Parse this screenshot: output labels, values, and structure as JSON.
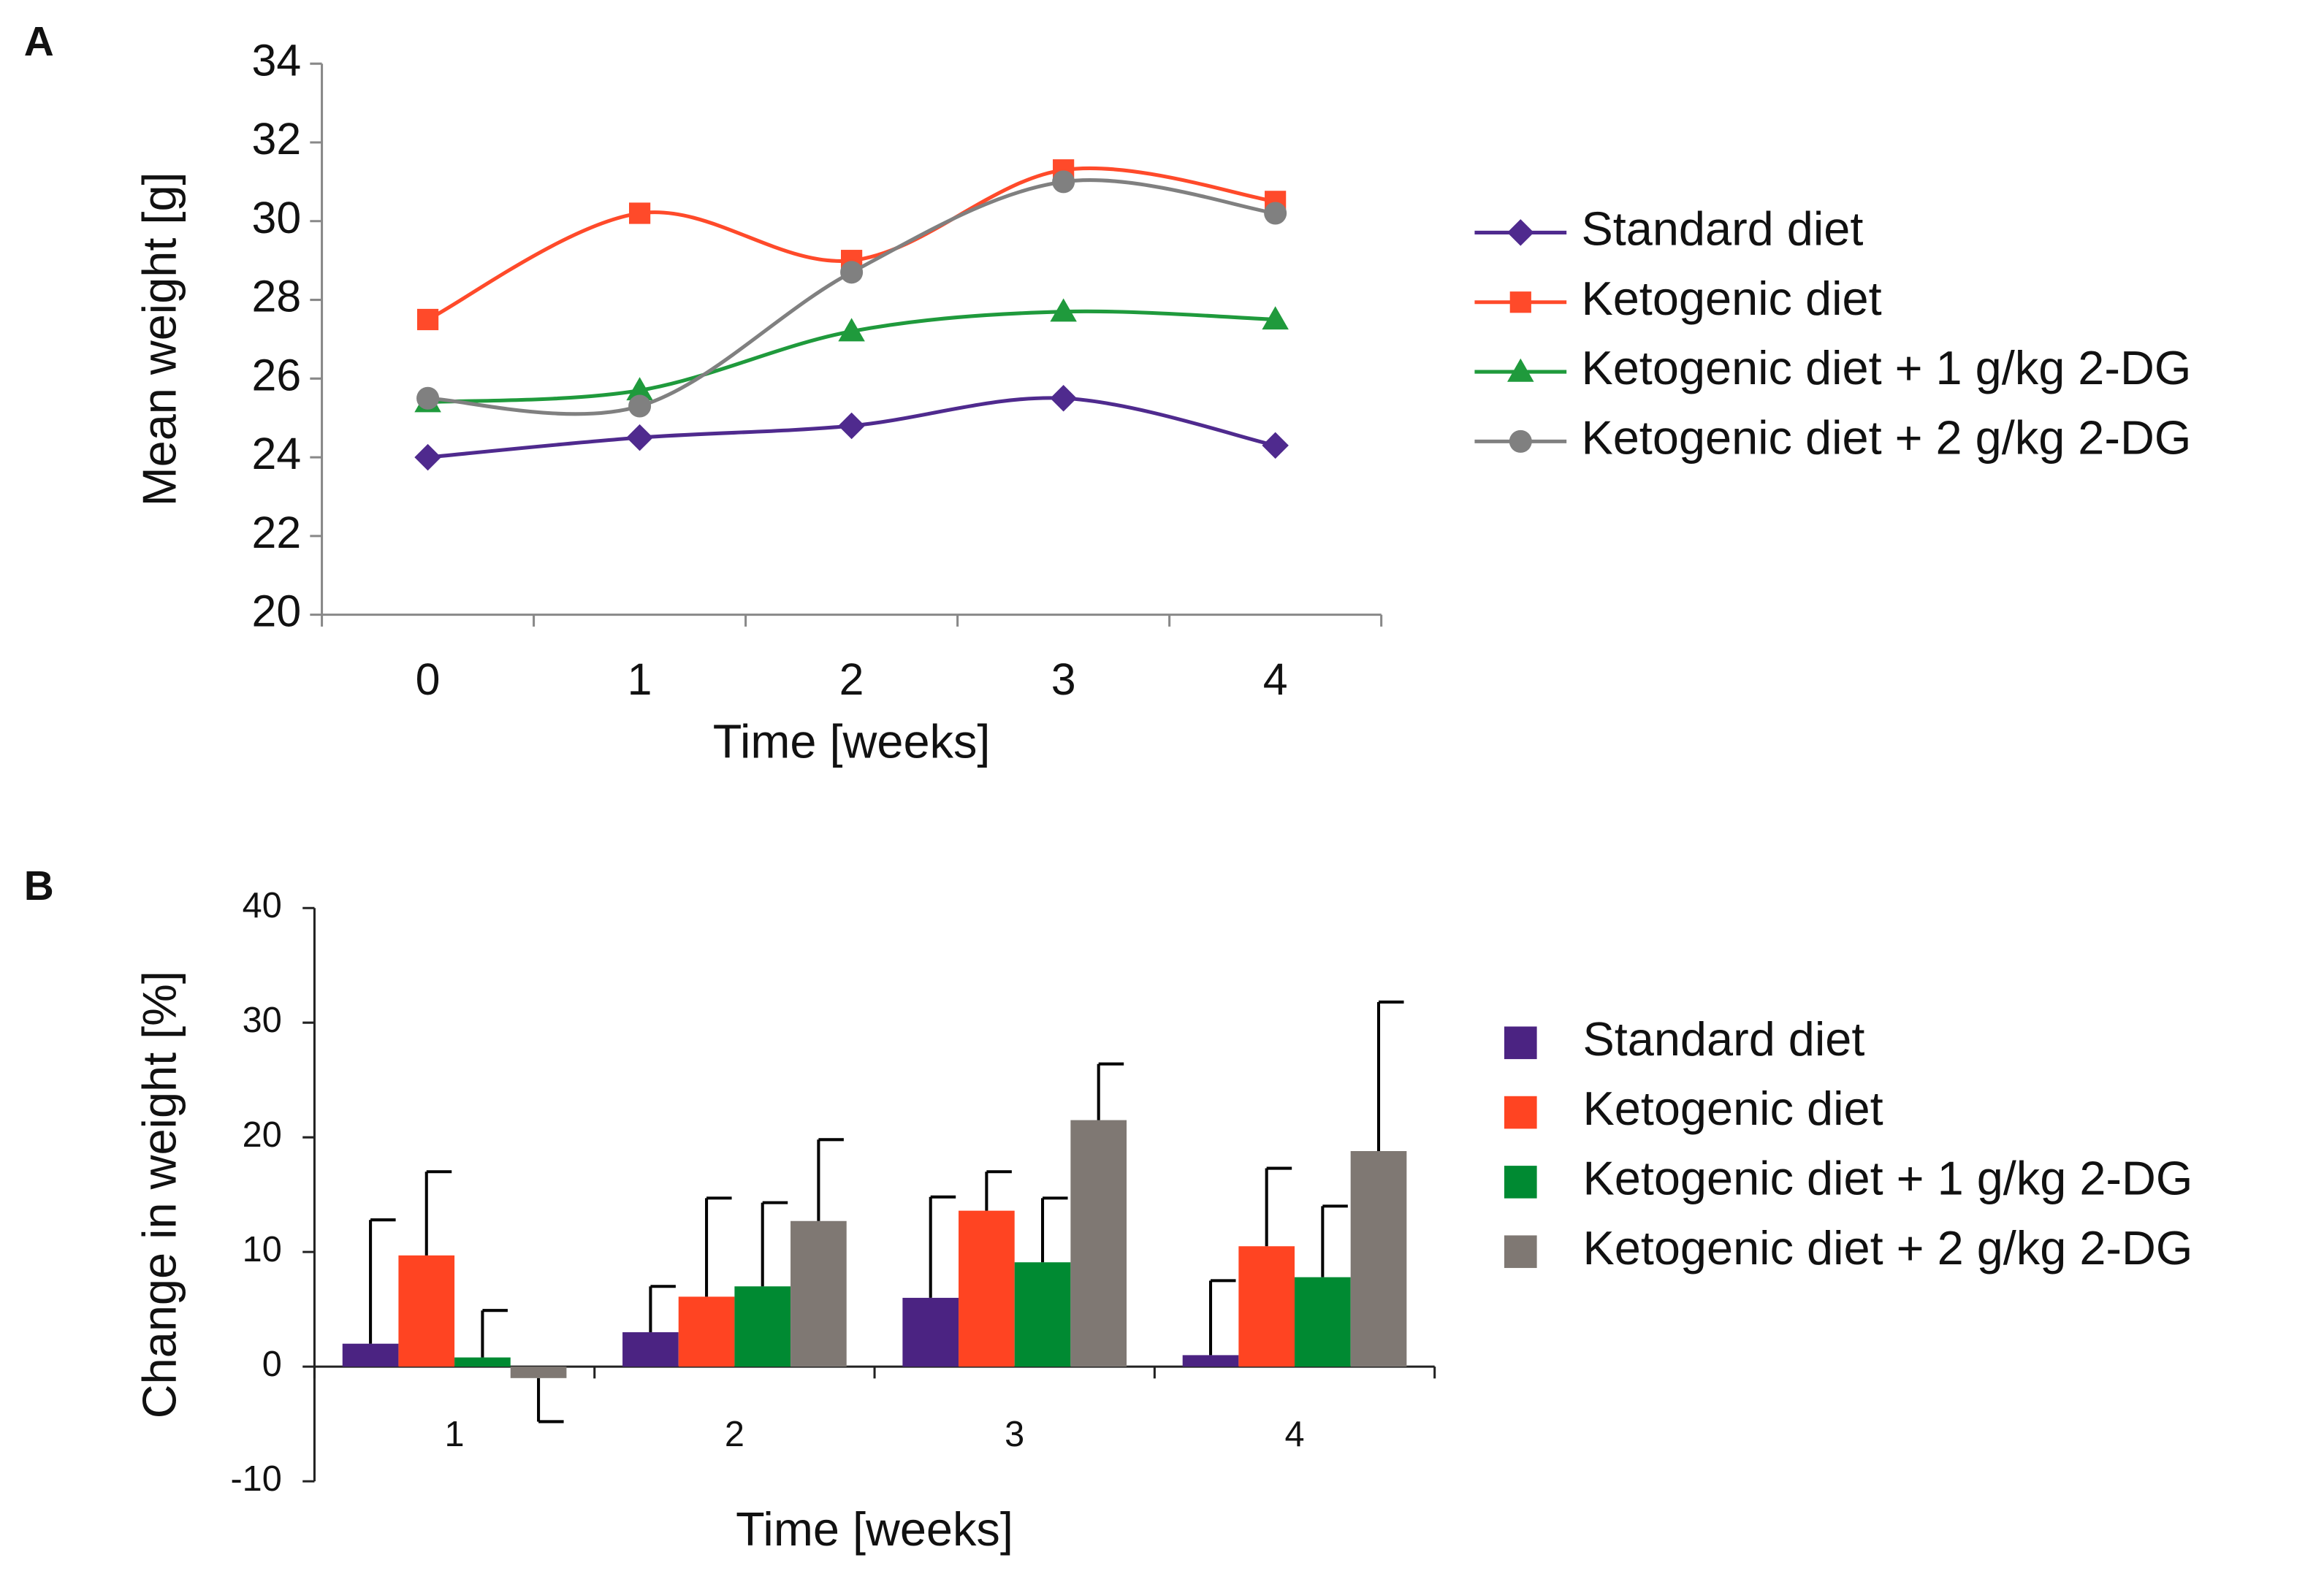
{
  "chart_data": [
    {
      "type": "line",
      "panel": "A",
      "x_label": "Time [weeks]",
      "y_label": "Mean weight [g]",
      "categories": [
        "0",
        "1",
        "2",
        "3",
        "4"
      ],
      "ylim": [
        20,
        34
      ],
      "yticks": [
        20,
        22,
        24,
        26,
        28,
        30,
        32,
        34
      ],
      "grid": false,
      "legend": "right",
      "smooth": true,
      "series": [
        {
          "name": "Standard diet",
          "color": "#4f2a8e",
          "marker": "diamond",
          "values": [
            24,
            24.5,
            24.8,
            25.5,
            24.3
          ]
        },
        {
          "name": "Ketogenic diet",
          "color": "#ff4a2a",
          "marker": "square",
          "values": [
            27.5,
            30.2,
            29,
            31.3,
            30.5
          ]
        },
        {
          "name": "Ketogenic diet + 1 g/kg 2-DG",
          "color": "#1f9a3c",
          "marker": "triangle",
          "values": [
            25.4,
            25.7,
            27.2,
            27.7,
            27.5
          ]
        },
        {
          "name": "Ketogenic diet + 2 g/kg 2-DG",
          "color": "#808080",
          "marker": "circle",
          "values": [
            25.5,
            25.3,
            28.7,
            31,
            30.2
          ]
        }
      ]
    },
    {
      "type": "bar",
      "panel": "B",
      "x_label": "Time [weeks]",
      "y_label": "Change in weight [%]",
      "categories": [
        "1",
        "2",
        "3",
        "4"
      ],
      "ylim": [
        -10,
        40
      ],
      "yticks": [
        -10,
        0,
        10,
        20,
        30,
        40
      ],
      "grid": false,
      "legend": "right",
      "series": [
        {
          "name": "Standard diet",
          "color": "#4b2382",
          "values": [
            2,
            3,
            6,
            1
          ],
          "errors": [
            10.8,
            4,
            8.8,
            6.5
          ]
        },
        {
          "name": "Ketogenic diet",
          "color": "#ff4422",
          "values": [
            9.7,
            6.1,
            13.6,
            10.5
          ],
          "errors": [
            7.3,
            8.6,
            3.4,
            6.8
          ]
        },
        {
          "name": "Ketogenic diet + 1 g/kg 2-DG",
          "color": "#008a32",
          "values": [
            0.8,
            7,
            9.1,
            7.8
          ],
          "errors": [
            4.1,
            7.3,
            5.6,
            6.2
          ]
        },
        {
          "name": "Ketogenic diet + 2 g/kg 2-DG",
          "color": "#7f7873",
          "values": [
            -1,
            12.7,
            21.5,
            18.8
          ],
          "errors": [
            3.8,
            7.1,
            4.9,
            13
          ]
        }
      ]
    }
  ]
}
